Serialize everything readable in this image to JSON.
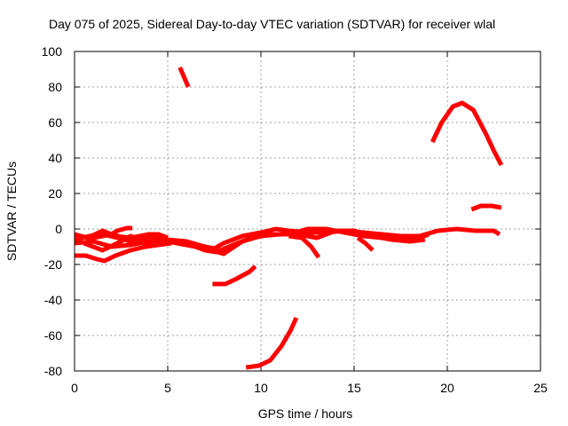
{
  "chart_data": {
    "type": "line",
    "title": "Day 075 of 2025, Sidereal Day-to-day VTEC variation (SDTVAR) for receiver wlal",
    "xlabel": "GPS time / hours",
    "ylabel": "SDTVAR / TECUs",
    "xlim": [
      0,
      25
    ],
    "ylim": [
      -80,
      100
    ],
    "xticks": [
      "0",
      "5",
      "10",
      "15",
      "20",
      "25"
    ],
    "yticks": [
      "-80",
      "-60",
      "-40",
      "-20",
      "0",
      "20",
      "40",
      "60",
      "80",
      "100"
    ],
    "grid": true,
    "color": "#ff0000",
    "series": [
      {
        "points": [
          [
            0,
            -4
          ],
          [
            1,
            -5
          ],
          [
            2,
            -3
          ],
          [
            3,
            -6
          ],
          [
            4,
            -5
          ],
          [
            5,
            -6
          ],
          [
            6,
            -7
          ],
          [
            7,
            -10
          ],
          [
            7.5,
            -11
          ],
          [
            8,
            -8
          ],
          [
            9,
            -4
          ],
          [
            10,
            -2
          ],
          [
            10.8,
            0
          ],
          [
            11.5,
            -1
          ],
          [
            12.5,
            -2
          ],
          [
            13.5,
            -2
          ],
          [
            14.5,
            -1
          ],
          [
            15.5,
            -2
          ],
          [
            16.5,
            -3
          ],
          [
            17.5,
            -4
          ],
          [
            18.5,
            -4
          ],
          [
            19.5,
            -1
          ],
          [
            20.5,
            0
          ],
          [
            21.5,
            -1
          ],
          [
            22.5,
            -1
          ],
          [
            22.8,
            -3
          ]
        ]
      },
      {
        "points": [
          [
            0,
            -6
          ],
          [
            0.8,
            -4
          ],
          [
            1.5,
            -3
          ],
          [
            2.3,
            -5
          ],
          [
            3,
            -7
          ],
          [
            4,
            -8
          ],
          [
            5,
            -7
          ],
          [
            6,
            -8
          ],
          [
            7,
            -12
          ],
          [
            7.6,
            -13
          ],
          [
            8.5,
            -9
          ],
          [
            9.5,
            -5
          ],
          [
            10.5,
            -3
          ],
          [
            11.5,
            -3
          ],
          [
            12.5,
            0
          ],
          [
            13.5,
            0
          ],
          [
            14.5,
            -2
          ],
          [
            15.5,
            -4
          ],
          [
            16.5,
            -5
          ],
          [
            17.5,
            -6
          ],
          [
            18.5,
            -5
          ],
          [
            19,
            -3
          ]
        ]
      },
      {
        "points": [
          [
            0,
            -8
          ],
          [
            1,
            -7
          ],
          [
            2,
            -10
          ],
          [
            3,
            -9
          ],
          [
            4,
            -7
          ],
          [
            5,
            -7
          ],
          [
            6,
            -9
          ],
          [
            7,
            -11
          ],
          [
            8,
            -14
          ],
          [
            9,
            -7
          ],
          [
            10,
            -4
          ],
          [
            11,
            -3
          ],
          [
            12,
            -3
          ],
          [
            13,
            -5
          ],
          [
            14,
            -1
          ],
          [
            15,
            -1
          ],
          [
            16,
            -4
          ],
          [
            17,
            -6
          ],
          [
            18,
            -7
          ],
          [
            18.8,
            -6
          ]
        ]
      },
      {
        "points": [
          [
            0,
            -3
          ],
          [
            0.7,
            -5
          ],
          [
            1.5,
            -1
          ],
          [
            2.2,
            -4
          ],
          [
            3,
            -5
          ],
          [
            4,
            -3
          ],
          [
            4.5,
            -3
          ],
          [
            5,
            -5
          ]
        ]
      },
      {
        "points": [
          [
            0.5,
            -8
          ],
          [
            1.5,
            -12
          ],
          [
            2.5,
            -7
          ],
          [
            3,
            -4
          ],
          [
            3.5,
            -6
          ],
          [
            4.5,
            -9
          ],
          [
            5.2,
            -8
          ]
        ]
      },
      {
        "points": [
          [
            0,
            -15
          ],
          [
            0.6,
            -15
          ],
          [
            1.2,
            -17
          ],
          [
            1.6,
            -18
          ],
          [
            2.2,
            -15
          ],
          [
            3,
            -12
          ],
          [
            3.8,
            -10
          ],
          [
            4.5,
            -9
          ]
        ]
      },
      {
        "points": [
          [
            1.8,
            -4
          ],
          [
            2.3,
            -1
          ],
          [
            2.8,
            0.5
          ],
          [
            3.1,
            0.5
          ]
        ]
      },
      {
        "points": [
          [
            5.65,
            91
          ],
          [
            5.9,
            85
          ],
          [
            6.1,
            80
          ]
        ]
      },
      {
        "points": [
          [
            7.4,
            -31
          ],
          [
            8.1,
            -31
          ],
          [
            8.7,
            -28
          ],
          [
            9.4,
            -24
          ],
          [
            9.7,
            -21
          ]
        ]
      },
      {
        "points": [
          [
            9.2,
            -78
          ],
          [
            9.9,
            -77
          ],
          [
            10.5,
            -74
          ],
          [
            11.1,
            -66
          ],
          [
            11.6,
            -57
          ],
          [
            11.9,
            -50
          ]
        ]
      },
      {
        "points": [
          [
            11.5,
            -4
          ],
          [
            12.2,
            -5
          ],
          [
            12.7,
            -10
          ],
          [
            13.1,
            -16
          ]
        ]
      },
      {
        "points": [
          [
            15.2,
            -5
          ],
          [
            15.6,
            -8
          ],
          [
            16,
            -12
          ]
        ]
      },
      {
        "points": [
          [
            19.2,
            49
          ],
          [
            19.7,
            60
          ],
          [
            20.3,
            69
          ],
          [
            20.8,
            71
          ],
          [
            21.4,
            67
          ],
          [
            22.1,
            53
          ],
          [
            22.5,
            44
          ],
          [
            22.9,
            36
          ]
        ]
      },
      {
        "points": [
          [
            21.3,
            11
          ],
          [
            21.8,
            13
          ],
          [
            22.4,
            13
          ],
          [
            22.9,
            12
          ]
        ]
      }
    ]
  }
}
